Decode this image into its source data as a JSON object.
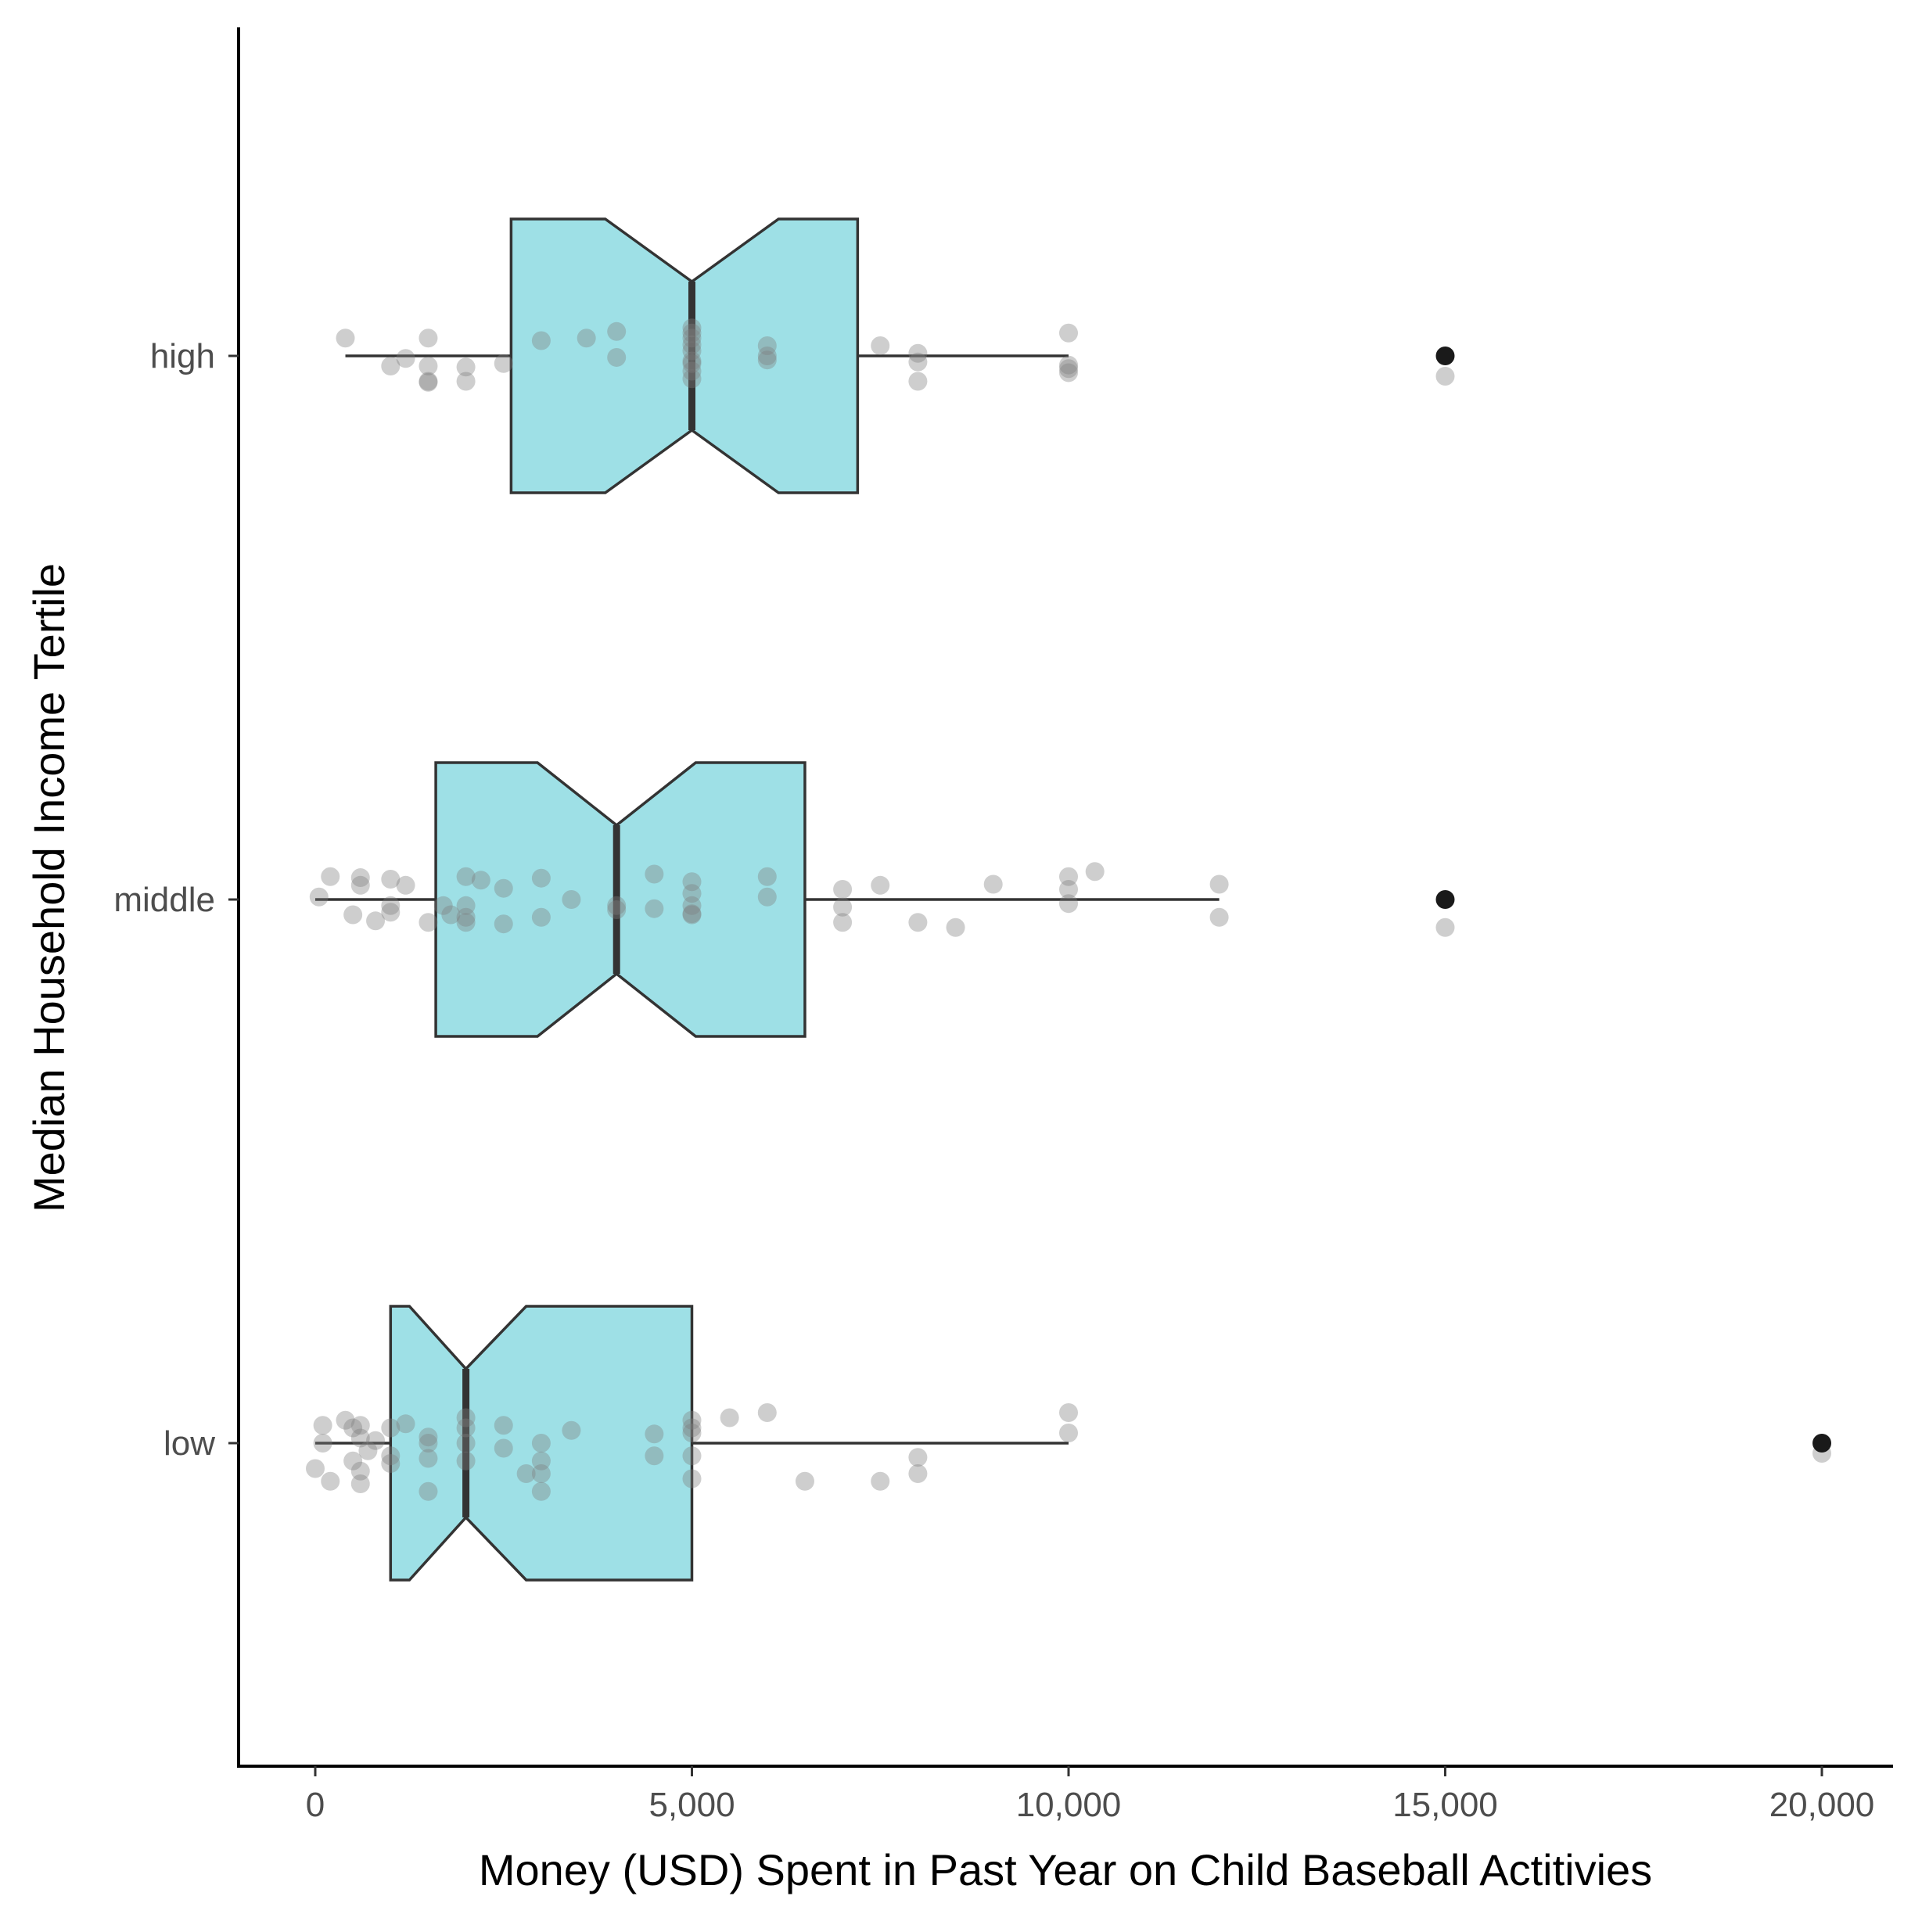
{
  "chart_data": {
    "type": "boxplot",
    "orientation": "horizontal",
    "notched": true,
    "title": "",
    "xlabel": "Money (USD) Spent in Past Year on Child Baseball Actitivies",
    "ylabel": "Median Household Income Tertile",
    "xlim": [
      -1000,
      21000
    ],
    "xticks": [
      0,
      5000,
      10000,
      15000,
      20000
    ],
    "xtick_labels": [
      "0",
      "5,000",
      "10,000",
      "15,000",
      "20,000"
    ],
    "categories": [
      "high",
      "middle",
      "low"
    ],
    "grid": false,
    "legend": "none",
    "colors": {
      "box_fill": "#9ee0e6",
      "box_stroke": "#333333",
      "jitter_point": "#7f7f7f",
      "outlier": "#1a1a1a"
    },
    "boxes": [
      {
        "category": "high",
        "whisker_low": 400,
        "q1": 2600,
        "median": 5000,
        "q3": 7200,
        "whisker_high": 10000,
        "notch_low": 3850,
        "notch_high": 6150,
        "outliers": [
          15000
        ],
        "points": [
          {
            "x": 400,
            "o": -0.35
          },
          {
            "x": 1500,
            "o": -0.35
          },
          {
            "x": 1200,
            "o": 0.05
          },
          {
            "x": 1000,
            "o": 0.2
          },
          {
            "x": 1500,
            "o": 0.2
          },
          {
            "x": 2000,
            "o": 0.22
          },
          {
            "x": 2500,
            "o": 0.15
          },
          {
            "x": 1500,
            "o": 0.5
          },
          {
            "x": 2000,
            "o": 0.5
          },
          {
            "x": 1500,
            "o": 0.52
          },
          {
            "x": 3000,
            "o": -0.3
          },
          {
            "x": 3600,
            "o": -0.35
          },
          {
            "x": 4000,
            "o": -0.48
          },
          {
            "x": 4000,
            "o": 0.03
          },
          {
            "x": 5000,
            "o": -0.55
          },
          {
            "x": 5000,
            "o": -0.45
          },
          {
            "x": 5000,
            "o": -0.35
          },
          {
            "x": 5000,
            "o": -0.22
          },
          {
            "x": 5000,
            "o": -0.1
          },
          {
            "x": 5000,
            "o": 0.1
          },
          {
            "x": 5000,
            "o": 0.15
          },
          {
            "x": 5000,
            "o": 0.3
          },
          {
            "x": 5000,
            "o": 0.45
          },
          {
            "x": 6000,
            "o": -0.2
          },
          {
            "x": 6000,
            "o": 0.0
          },
          {
            "x": 6000,
            "o": 0.08
          },
          {
            "x": 7500,
            "o": -0.2
          },
          {
            "x": 8000,
            "o": -0.05
          },
          {
            "x": 8000,
            "o": 0.12
          },
          {
            "x": 8000,
            "o": 0.5
          },
          {
            "x": 10000,
            "o": -0.45
          },
          {
            "x": 10000,
            "o": 0.18
          },
          {
            "x": 10000,
            "o": 0.25
          },
          {
            "x": 10000,
            "o": 0.33
          },
          {
            "x": 15000,
            "o": 0.4
          }
        ]
      },
      {
        "category": "middle",
        "whisker_low": 0,
        "q1": 1600,
        "median": 4000,
        "q3": 6500,
        "whisker_high": 12000,
        "notch_low": 2950,
        "notch_high": 5050,
        "outliers": [
          15000
        ],
        "points": [
          {
            "x": 200,
            "o": -0.45
          },
          {
            "x": 600,
            "o": -0.43
          },
          {
            "x": 1000,
            "o": -0.4
          },
          {
            "x": 600,
            "o": -0.28
          },
          {
            "x": 1200,
            "o": -0.28
          },
          {
            "x": 50,
            "o": -0.05
          },
          {
            "x": 1000,
            "o": 0.12
          },
          {
            "x": 1000,
            "o": 0.25
          },
          {
            "x": 500,
            "o": 0.3
          },
          {
            "x": 800,
            "o": 0.42
          },
          {
            "x": 1500,
            "o": 0.45
          },
          {
            "x": 1700,
            "o": 0.12
          },
          {
            "x": 2000,
            "o": 0.12
          },
          {
            "x": 2000,
            "o": 0.35
          },
          {
            "x": 1800,
            "o": 0.3
          },
          {
            "x": 2000,
            "o": 0.45
          },
          {
            "x": 2000,
            "o": -0.45
          },
          {
            "x": 2200,
            "o": -0.38
          },
          {
            "x": 2500,
            "o": -0.22
          },
          {
            "x": 2500,
            "o": 0.48
          },
          {
            "x": 3000,
            "o": -0.42
          },
          {
            "x": 3000,
            "o": 0.35
          },
          {
            "x": 3400,
            "o": 0.0
          },
          {
            "x": 4000,
            "o": 0.12
          },
          {
            "x": 4000,
            "o": 0.2
          },
          {
            "x": 4500,
            "o": -0.5
          },
          {
            "x": 4500,
            "o": 0.18
          },
          {
            "x": 5000,
            "o": -0.35
          },
          {
            "x": 5000,
            "o": -0.12
          },
          {
            "x": 5000,
            "o": 0.12
          },
          {
            "x": 5000,
            "o": 0.28
          },
          {
            "x": 5000,
            "o": 0.3
          },
          {
            "x": 6000,
            "o": -0.45
          },
          {
            "x": 6000,
            "o": -0.05
          },
          {
            "x": 7000,
            "o": -0.2
          },
          {
            "x": 7000,
            "o": 0.15
          },
          {
            "x": 7000,
            "o": 0.45
          },
          {
            "x": 7500,
            "o": -0.28
          },
          {
            "x": 8000,
            "o": 0.45
          },
          {
            "x": 8500,
            "o": 0.55
          },
          {
            "x": 9000,
            "o": -0.3
          },
          {
            "x": 10000,
            "o": -0.45
          },
          {
            "x": 10000,
            "o": -0.2
          },
          {
            "x": 10000,
            "o": 0.08
          },
          {
            "x": 10350,
            "o": -0.55
          },
          {
            "x": 12000,
            "o": -0.3
          },
          {
            "x": 12000,
            "o": 0.35
          },
          {
            "x": 15000,
            "o": 0.55
          }
        ]
      },
      {
        "category": "low",
        "whisker_low": 0,
        "q1": 1000,
        "median": 2000,
        "q3": 5000,
        "whisker_high": 10000,
        "notch_low": 1250,
        "notch_high": 2800,
        "outliers": [
          20000
        ],
        "points": [
          {
            "x": 100,
            "o": -0.35
          },
          {
            "x": 400,
            "o": -0.45
          },
          {
            "x": 500,
            "o": -0.3
          },
          {
            "x": 600,
            "o": -0.35
          },
          {
            "x": 600,
            "o": -0.1
          },
          {
            "x": 800,
            "o": -0.05
          },
          {
            "x": 100,
            "o": 0.0
          },
          {
            "x": 700,
            "o": 0.15
          },
          {
            "x": 1000,
            "o": -0.3
          },
          {
            "x": 1200,
            "o": -0.38
          },
          {
            "x": 1000,
            "o": 0.25
          },
          {
            "x": 1000,
            "o": 0.4
          },
          {
            "x": 500,
            "o": 0.35
          },
          {
            "x": 600,
            "o": 0.55
          },
          {
            "x": 0,
            "o": 0.5
          },
          {
            "x": 200,
            "o": 0.75
          },
          {
            "x": 600,
            "o": 0.8
          },
          {
            "x": 1500,
            "o": -0.12
          },
          {
            "x": 1500,
            "o": 0.0
          },
          {
            "x": 1500,
            "o": 0.3
          },
          {
            "x": 1500,
            "o": 0.95
          },
          {
            "x": 2000,
            "o": -0.5
          },
          {
            "x": 2000,
            "o": -0.3
          },
          {
            "x": 2000,
            "o": 0.0
          },
          {
            "x": 2000,
            "o": 0.35
          },
          {
            "x": 2500,
            "o": -0.35
          },
          {
            "x": 2500,
            "o": 0.1
          },
          {
            "x": 2800,
            "o": 0.6
          },
          {
            "x": 3000,
            "o": 0.0
          },
          {
            "x": 3000,
            "o": 0.35
          },
          {
            "x": 3000,
            "o": 0.6
          },
          {
            "x": 3000,
            "o": 0.95
          },
          {
            "x": 3400,
            "o": -0.25
          },
          {
            "x": 4500,
            "o": -0.18
          },
          {
            "x": 4500,
            "o": 0.25
          },
          {
            "x": 5000,
            "o": -0.45
          },
          {
            "x": 5000,
            "o": -0.3
          },
          {
            "x": 5000,
            "o": -0.2
          },
          {
            "x": 5000,
            "o": 0.25
          },
          {
            "x": 5000,
            "o": 0.7
          },
          {
            "x": 5500,
            "o": -0.5
          },
          {
            "x": 6000,
            "o": -0.6
          },
          {
            "x": 6500,
            "o": 0.75
          },
          {
            "x": 7500,
            "o": 0.75
          },
          {
            "x": 8000,
            "o": 0.28
          },
          {
            "x": 8000,
            "o": 0.6
          },
          {
            "x": 10000,
            "o": -0.6
          },
          {
            "x": 10000,
            "o": -0.2
          },
          {
            "x": 20000,
            "o": 0.2
          }
        ]
      }
    ]
  }
}
